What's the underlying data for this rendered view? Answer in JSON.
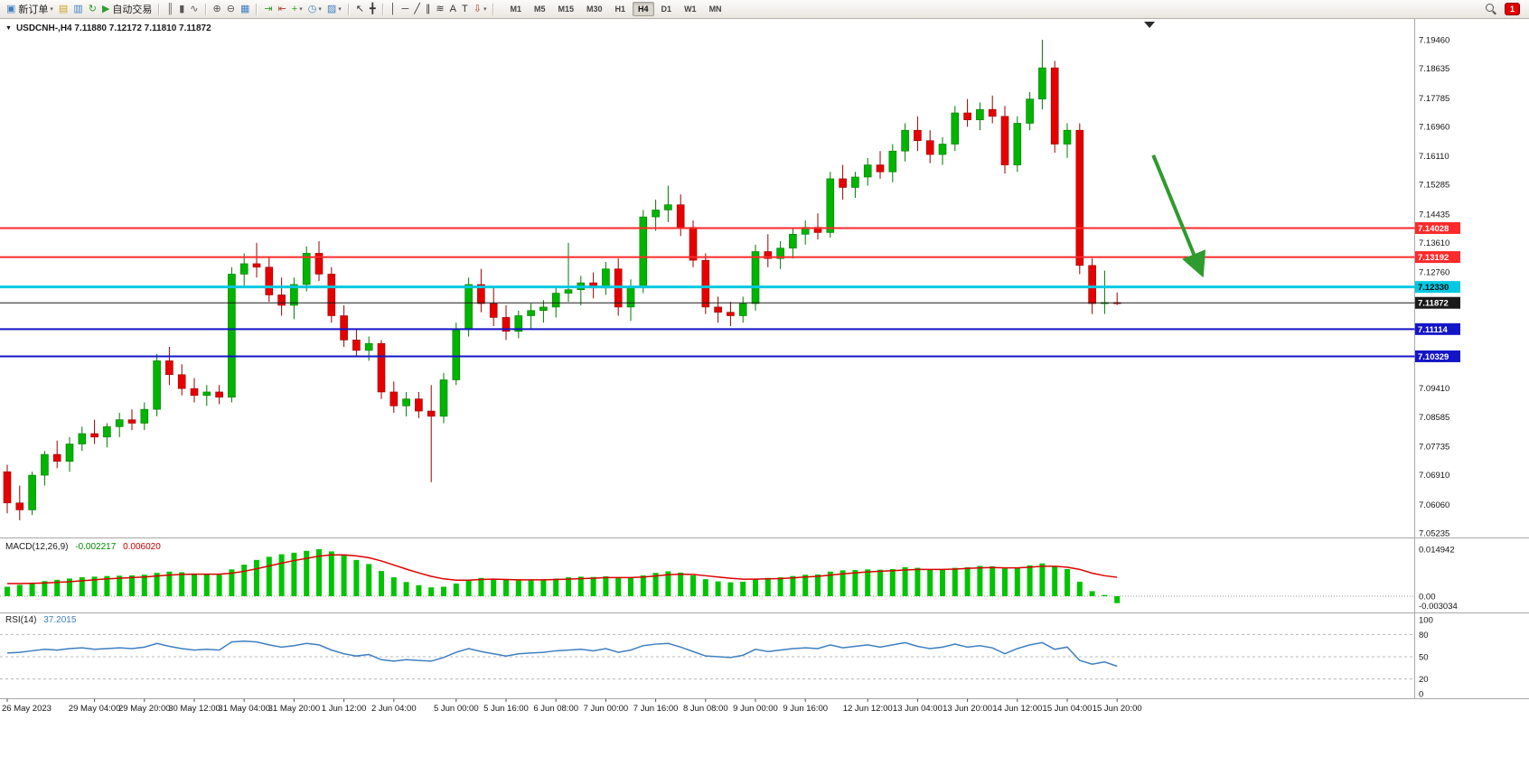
{
  "toolbar": {
    "items": [
      {
        "kind": "button",
        "name": "new-order",
        "glyph": "▣",
        "color": "#3f7fbf",
        "label": "新订单",
        "dropdown": true
      },
      {
        "kind": "icon",
        "name": "profiles",
        "glyph": "▤",
        "color": "#c9a227"
      },
      {
        "kind": "icon",
        "name": "market-watch",
        "glyph": "▥",
        "color": "#3f7fbf"
      },
      {
        "kind": "icon",
        "name": "refresh",
        "glyph": "↻",
        "color": "#2f9e2f"
      },
      {
        "kind": "button",
        "name": "auto-trading",
        "glyph": "▶",
        "color": "#2f9e2f",
        "label": "自动交易"
      },
      {
        "kind": "sep"
      },
      {
        "kind": "icon",
        "name": "bar-chart-mode",
        "glyph": "║",
        "color": "#555555"
      },
      {
        "kind": "icon",
        "name": "candlestick-mode",
        "glyph": "▮",
        "color": "#555555"
      },
      {
        "kind": "icon",
        "name": "line-chart-mode",
        "glyph": "∿",
        "color": "#555555"
      },
      {
        "kind": "sep"
      },
      {
        "kind": "icon",
        "name": "zoom-in",
        "glyph": "⊕",
        "color": "#555555"
      },
      {
        "kind": "icon",
        "name": "zoom-out",
        "glyph": "⊖",
        "color": "#555555"
      },
      {
        "kind": "icon",
        "name": "tile-windows",
        "glyph": "▦",
        "color": "#3f7fbf"
      },
      {
        "kind": "sep"
      },
      {
        "kind": "icon",
        "name": "auto-scroll",
        "glyph": "⇥",
        "color": "#2f9e2f"
      },
      {
        "kind": "icon",
        "name": "chart-shift",
        "glyph": "⇤",
        "color": "#b04030"
      },
      {
        "kind": "icon",
        "name": "indicators",
        "glyph": "+",
        "color": "#2f9e2f",
        "dropdown": true
      },
      {
        "kind": "icon",
        "name": "periods",
        "glyph": "◷",
        "color": "#3f7fbf",
        "dropdown": true
      },
      {
        "kind": "icon",
        "name": "templates",
        "glyph": "▨",
        "color": "#3f7fbf",
        "dropdown": true
      },
      {
        "kind": "sep"
      },
      {
        "kind": "icon",
        "name": "cursor",
        "glyph": "↖",
        "color": "#333333"
      },
      {
        "kind": "icon",
        "name": "crosshair",
        "glyph": "╋",
        "color": "#333333"
      },
      {
        "kind": "sep"
      },
      {
        "kind": "icon",
        "name": "vertical-line-tool",
        "glyph": "│",
        "color": "#333333"
      },
      {
        "kind": "icon",
        "name": "horizontal-line-tool",
        "glyph": "─",
        "color": "#333333"
      },
      {
        "kind": "icon",
        "name": "trendline-tool",
        "glyph": "╱",
        "color": "#333333"
      },
      {
        "kind": "icon",
        "name": "channel-tool",
        "glyph": "∥",
        "color": "#333333"
      },
      {
        "kind": "icon",
        "name": "fibonacci-tool",
        "glyph": "≋",
        "color": "#333333"
      },
      {
        "kind": "icon",
        "name": "text-tool",
        "glyph": "A",
        "color": "#333333"
      },
      {
        "kind": "icon",
        "name": "label-tool",
        "glyph": "T",
        "color": "#333333"
      },
      {
        "kind": "icon",
        "name": "arrows-tool",
        "glyph": "⇩",
        "color": "#b04030",
        "dropdown": true
      },
      {
        "kind": "sep"
      }
    ],
    "timeframes": [
      "M1",
      "M5",
      "M15",
      "M30",
      "H1",
      "H4",
      "D1",
      "W1",
      "MN"
    ],
    "active_timeframe": "H4",
    "notification_count": "1"
  },
  "chart_data": {
    "type": "candlestick",
    "symbol": "USDCNH-",
    "timeframe": "H4",
    "header_caret": "▼",
    "header_text": "USDCNH-,H4 7.11880 7.12172 7.11810 7.11872",
    "ohlc_display": {
      "open": "7.11880",
      "high": "7.12172",
      "low": "7.11810",
      "close": "7.11872"
    },
    "price_axis": {
      "ticks": [
        "7.19460",
        "7.18635",
        "7.17785",
        "7.16960",
        "7.16110",
        "7.15285",
        "7.14435",
        "7.13610",
        "7.12760",
        "7.09410",
        "7.08585",
        "7.07735",
        "7.06910",
        "7.06060",
        "7.05235"
      ]
    },
    "hlines": [
      {
        "price": 7.14028,
        "label": "7.14028",
        "color": "#FF2A2A",
        "width": 2,
        "text_color": "#ffffff"
      },
      {
        "price": 7.13192,
        "label": "7.13192",
        "color": "#FF2A2A",
        "width": 2,
        "text_color": "#ffffff"
      },
      {
        "price": 7.1233,
        "label": "7.12330",
        "color": "#00C8E0",
        "width": 3,
        "text_color": "#0a0a0a"
      },
      {
        "price": 7.11114,
        "label": "7.11114",
        "color": "#1515C8",
        "width": 2,
        "text_color": "#ffffff"
      },
      {
        "price": 7.10329,
        "label": "7.10329",
        "color": "#1515C8",
        "width": 2,
        "text_color": "#ffffff"
      }
    ],
    "current_price": {
      "price": 7.11872,
      "label": "7.11872",
      "color": "#1a1a1a",
      "text_color": "#ffffff"
    },
    "candles": [
      [
        7.07,
        7.072,
        7.058,
        7.061
      ],
      [
        7.061,
        7.066,
        7.056,
        7.059
      ],
      [
        7.059,
        7.07,
        7.0575,
        7.069
      ],
      [
        7.069,
        7.076,
        7.066,
        7.075
      ],
      [
        7.075,
        7.079,
        7.071,
        7.073
      ],
      [
        7.073,
        7.08,
        7.07,
        7.078
      ],
      [
        7.078,
        7.083,
        7.076,
        7.081
      ],
      [
        7.081,
        7.085,
        7.078,
        7.08
      ],
      [
        7.08,
        7.084,
        7.077,
        7.083
      ],
      [
        7.083,
        7.087,
        7.08,
        7.085
      ],
      [
        7.085,
        7.088,
        7.082,
        7.084
      ],
      [
        7.084,
        7.09,
        7.082,
        7.088
      ],
      [
        7.088,
        7.104,
        7.086,
        7.102
      ],
      [
        7.102,
        7.106,
        7.095,
        7.098
      ],
      [
        7.098,
        7.101,
        7.092,
        7.094
      ],
      [
        7.094,
        7.097,
        7.09,
        7.092
      ],
      [
        7.092,
        7.095,
        7.089,
        7.093
      ],
      [
        7.093,
        7.095,
        7.0895,
        7.0915
      ],
      [
        7.0915,
        7.129,
        7.09,
        7.127
      ],
      [
        7.127,
        7.133,
        7.123,
        7.13
      ],
      [
        7.13,
        7.136,
        7.126,
        7.129
      ],
      [
        7.129,
        7.132,
        7.119,
        7.121
      ],
      [
        7.121,
        7.126,
        7.115,
        7.118
      ],
      [
        7.118,
        7.126,
        7.114,
        7.124
      ],
      [
        7.124,
        7.135,
        7.122,
        7.133
      ],
      [
        7.133,
        7.1365,
        7.125,
        7.127
      ],
      [
        7.127,
        7.129,
        7.113,
        7.115
      ],
      [
        7.115,
        7.118,
        7.106,
        7.108
      ],
      [
        7.108,
        7.111,
        7.103,
        7.105
      ],
      [
        7.105,
        7.109,
        7.102,
        7.107
      ],
      [
        7.107,
        7.108,
        7.091,
        7.093
      ],
      [
        7.093,
        7.096,
        7.087,
        7.089
      ],
      [
        7.089,
        7.093,
        7.086,
        7.091
      ],
      [
        7.091,
        7.093,
        7.0855,
        7.0875
      ],
      [
        7.0875,
        7.095,
        7.067,
        7.086
      ],
      [
        7.086,
        7.0985,
        7.084,
        7.0965
      ],
      [
        7.0965,
        7.113,
        7.095,
        7.111
      ],
      [
        7.111,
        7.126,
        7.109,
        7.124
      ],
      [
        7.124,
        7.1285,
        7.116,
        7.1185
      ],
      [
        7.1185,
        7.123,
        7.112,
        7.1145
      ],
      [
        7.1145,
        7.118,
        7.108,
        7.1105
      ],
      [
        7.1105,
        7.1165,
        7.1085,
        7.115
      ],
      [
        7.115,
        7.1185,
        7.111,
        7.1165
      ],
      [
        7.1165,
        7.1195,
        7.113,
        7.1175
      ],
      [
        7.1175,
        7.1235,
        7.1145,
        7.1215
      ],
      [
        7.1215,
        7.136,
        7.119,
        7.1225
      ],
      [
        7.1225,
        7.1265,
        7.118,
        7.1245
      ],
      [
        7.1245,
        7.1275,
        7.12,
        7.123
      ],
      [
        7.123,
        7.1305,
        7.121,
        7.1285
      ],
      [
        7.1285,
        7.1315,
        7.115,
        7.1175
      ],
      [
        7.1175,
        7.1255,
        7.1135,
        7.1235
      ],
      [
        7.1235,
        7.1455,
        7.1215,
        7.1435
      ],
      [
        7.1435,
        7.1485,
        7.1395,
        7.1455
      ],
      [
        7.1455,
        7.1525,
        7.142,
        7.147
      ],
      [
        7.147,
        7.15,
        7.138,
        7.1405
      ],
      [
        7.1405,
        7.1425,
        7.129,
        7.131
      ],
      [
        7.131,
        7.133,
        7.1155,
        7.1175
      ],
      [
        7.1175,
        7.1205,
        7.113,
        7.116
      ],
      [
        7.116,
        7.119,
        7.112,
        7.115
      ],
      [
        7.115,
        7.1205,
        7.113,
        7.1185
      ],
      [
        7.1185,
        7.1355,
        7.1165,
        7.1335
      ],
      [
        7.1335,
        7.1385,
        7.129,
        7.1315
      ],
      [
        7.1315,
        7.1365,
        7.1285,
        7.1345
      ],
      [
        7.1345,
        7.1405,
        7.1315,
        7.1385
      ],
      [
        7.1385,
        7.1425,
        7.1355,
        7.1405
      ],
      [
        7.1405,
        7.1445,
        7.137,
        7.139
      ],
      [
        7.139,
        7.1565,
        7.1375,
        7.1545
      ],
      [
        7.1545,
        7.1585,
        7.1485,
        7.152
      ],
      [
        7.152,
        7.1565,
        7.149,
        7.155
      ],
      [
        7.155,
        7.1605,
        7.1525,
        7.1585
      ],
      [
        7.1585,
        7.1625,
        7.1545,
        7.1565
      ],
      [
        7.1565,
        7.1645,
        7.1535,
        7.1625
      ],
      [
        7.1625,
        7.1705,
        7.1595,
        7.1685
      ],
      [
        7.1685,
        7.1725,
        7.1625,
        7.1655
      ],
      [
        7.1655,
        7.1685,
        7.159,
        7.1615
      ],
      [
        7.1615,
        7.1665,
        7.1585,
        7.1645
      ],
      [
        7.1645,
        7.1755,
        7.1625,
        7.1735
      ],
      [
        7.1735,
        7.1775,
        7.1695,
        7.1715
      ],
      [
        7.1715,
        7.1765,
        7.1685,
        7.1745
      ],
      [
        7.1745,
        7.1785,
        7.1705,
        7.1725
      ],
      [
        7.1725,
        7.1755,
        7.156,
        7.1585
      ],
      [
        7.1585,
        7.1725,
        7.1565,
        7.1705
      ],
      [
        7.1705,
        7.1795,
        7.1685,
        7.1775
      ],
      [
        7.1775,
        7.1946,
        7.1745,
        7.1865
      ],
      [
        7.1865,
        7.1885,
        7.162,
        7.1645
      ],
      [
        7.1645,
        7.1705,
        7.1605,
        7.1685
      ],
      [
        7.1685,
        7.1705,
        7.127,
        7.1295
      ],
      [
        7.1295,
        7.1315,
        7.1155,
        7.1185
      ],
      [
        7.1185,
        7.128,
        7.1155,
        7.1188
      ],
      [
        7.1188,
        7.12172,
        7.1181,
        7.11872
      ]
    ],
    "time_labels": [
      {
        "i": 0,
        "t": "26 May 2023"
      },
      {
        "i": 7,
        "t": "29 May 04:00"
      },
      {
        "i": 11,
        "t": "29 May 20:00"
      },
      {
        "i": 15,
        "t": "30 May 12:00"
      },
      {
        "i": 19,
        "t": "31 May 04:00"
      },
      {
        "i": 23,
        "t": "31 May 20:00"
      },
      {
        "i": 27,
        "t": "1 Jun 12:00"
      },
      {
        "i": 31,
        "t": "2 Jun 04:00"
      },
      {
        "i": 36,
        "t": "5 Jun 00:00"
      },
      {
        "i": 40,
        "t": "5 Jun 16:00"
      },
      {
        "i": 44,
        "t": "6 Jun 08:00"
      },
      {
        "i": 48,
        "t": "7 Jun 00:00"
      },
      {
        "i": 52,
        "t": "7 Jun 16:00"
      },
      {
        "i": 56,
        "t": "8 Jun 08:00"
      },
      {
        "i": 60,
        "t": "9 Jun 00:00"
      },
      {
        "i": 64,
        "t": "9 Jun 16:00"
      },
      {
        "i": 69,
        "t": "12 Jun 12:00"
      },
      {
        "i": 73,
        "t": "13 Jun 04:00"
      },
      {
        "i": 77,
        "t": "13 Jun 20:00"
      },
      {
        "i": 81,
        "t": "14 Jun 12:00"
      },
      {
        "i": 85,
        "t": "15 Jun 04:00"
      },
      {
        "i": 89,
        "t": "15 Jun 20:00"
      }
    ],
    "annotations": {
      "arrow": {
        "from_bar": 91.9,
        "from_price": 7.1613,
        "to_bar": 95.7,
        "to_price": 7.1279,
        "color": "#2E9B2E"
      },
      "shift_marker_bar": 91.6
    },
    "indicators": {
      "macd": {
        "label": "MACD(12,26,9)",
        "main_value": "-0.002217",
        "signal_value": "0.006020",
        "axis_labels": {
          "max": "0.014942",
          "zero": "0.00",
          "min": "-0.003034"
        },
        "scale": {
          "max": 0.014942,
          "min": -0.003034
        },
        "histogram_color": "#00C400",
        "signal_color": "#DD0000",
        "histogram": [
          0.003,
          0.0036,
          0.0042,
          0.0048,
          0.0052,
          0.0056,
          0.006,
          0.0062,
          0.0064,
          0.0065,
          0.0066,
          0.0068,
          0.0074,
          0.0078,
          0.0076,
          0.0072,
          0.0069,
          0.0068,
          0.0085,
          0.01,
          0.0115,
          0.0125,
          0.0133,
          0.0138,
          0.0144,
          0.0149,
          0.0142,
          0.013,
          0.0115,
          0.0102,
          0.008,
          0.006,
          0.0045,
          0.0035,
          0.0028,
          0.003,
          0.004,
          0.0052,
          0.0058,
          0.0056,
          0.0052,
          0.005,
          0.005,
          0.0052,
          0.0056,
          0.006,
          0.0062,
          0.0061,
          0.0063,
          0.0059,
          0.0058,
          0.0066,
          0.0074,
          0.0079,
          0.0075,
          0.0066,
          0.0054,
          0.0047,
          0.0044,
          0.0046,
          0.0054,
          0.0058,
          0.006,
          0.0064,
          0.0068,
          0.0069,
          0.0078,
          0.0082,
          0.0083,
          0.0085,
          0.0084,
          0.0086,
          0.0092,
          0.009,
          0.0086,
          0.0085,
          0.009,
          0.0092,
          0.0096,
          0.0095,
          0.0088,
          0.009,
          0.0098,
          0.0104,
          0.0094,
          0.0086,
          0.0046,
          0.0016,
          0.0004,
          -0.0022
        ],
        "signal": [
          0.004,
          0.004,
          0.0041,
          0.0042,
          0.0044,
          0.0046,
          0.0049,
          0.0052,
          0.0055,
          0.0057,
          0.0059,
          0.0061,
          0.0064,
          0.0067,
          0.0069,
          0.007,
          0.007,
          0.007,
          0.0073,
          0.0079,
          0.0087,
          0.0096,
          0.0105,
          0.0113,
          0.012,
          0.0127,
          0.0131,
          0.0131,
          0.0128,
          0.0122,
          0.0112,
          0.0099,
          0.0086,
          0.0074,
          0.0063,
          0.0055,
          0.0051,
          0.0051,
          0.0053,
          0.0054,
          0.0053,
          0.0052,
          0.0052,
          0.0052,
          0.0053,
          0.0054,
          0.0056,
          0.0057,
          0.0059,
          0.0059,
          0.0059,
          0.0061,
          0.0064,
          0.0068,
          0.007,
          0.0069,
          0.0065,
          0.0061,
          0.0057,
          0.0054,
          0.0054,
          0.0055,
          0.0056,
          0.0058,
          0.0061,
          0.0063,
          0.0067,
          0.0071,
          0.0074,
          0.0077,
          0.0079,
          0.0081,
          0.0083,
          0.0085,
          0.0085,
          0.0085,
          0.0086,
          0.0088,
          0.009,
          0.0091,
          0.009,
          0.009,
          0.0092,
          0.0095,
          0.0095,
          0.0092,
          0.0085,
          0.0073,
          0.0065,
          0.006
        ]
      },
      "rsi": {
        "label": "RSI(14)",
        "value": "37.2015",
        "color": "#3E7FC1",
        "levels": [
          80,
          50,
          20
        ],
        "axis_ticks": [
          "100",
          "80",
          "50",
          "20",
          "0"
        ],
        "values": [
          55,
          56,
          58,
          60,
          59,
          61,
          62,
          60,
          61,
          62,
          61,
          63,
          68,
          64,
          61,
          59,
          60,
          59,
          70,
          71,
          70,
          66,
          63,
          65,
          68,
          66,
          59,
          54,
          51,
          53,
          46,
          44,
          46,
          45,
          44,
          49,
          56,
          61,
          57,
          54,
          51,
          54,
          55,
          56,
          58,
          59,
          60,
          58,
          61,
          56,
          59,
          65,
          67,
          68,
          63,
          57,
          51,
          50,
          49,
          52,
          60,
          57,
          59,
          61,
          62,
          61,
          66,
          62,
          64,
          66,
          63,
          66,
          69,
          64,
          61,
          63,
          67,
          63,
          65,
          62,
          54,
          61,
          66,
          69,
          60,
          63,
          45,
          40,
          43,
          37.2
        ]
      }
    }
  }
}
